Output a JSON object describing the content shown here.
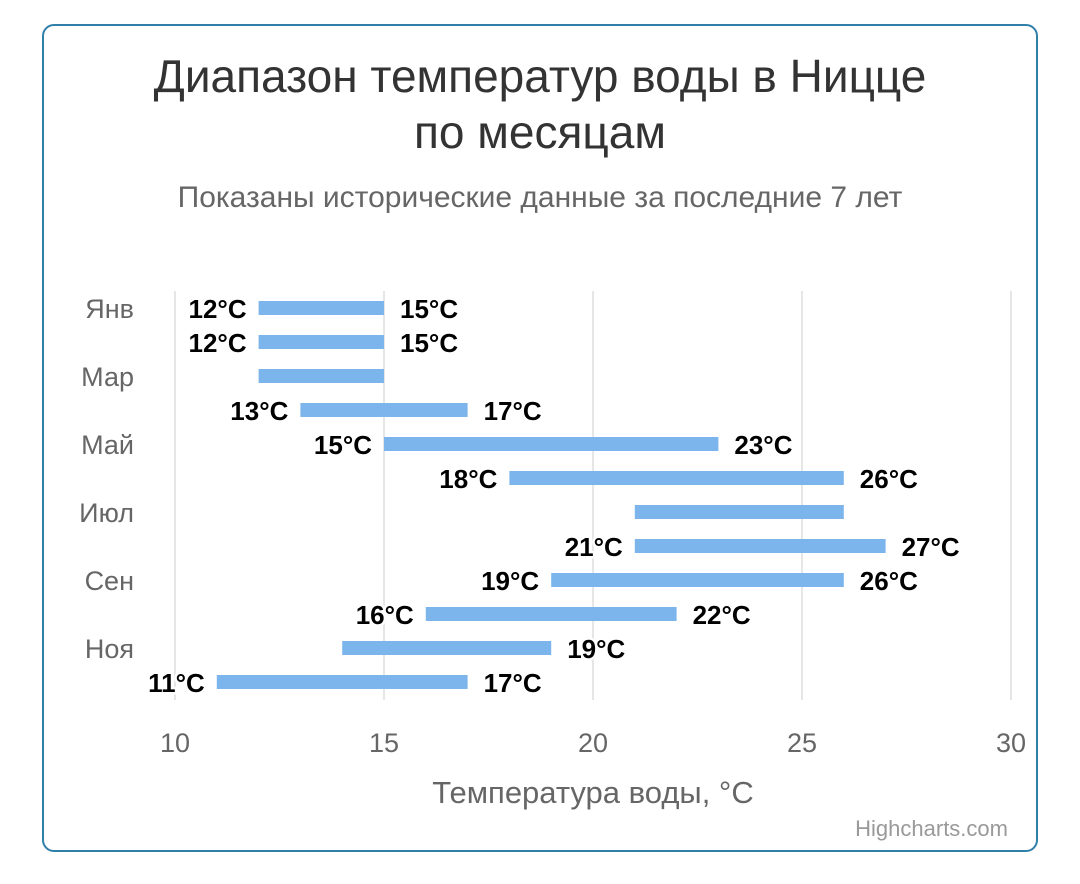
{
  "chart_data": {
    "type": "columnrange",
    "orientation": "horizontal",
    "title": "Диапазон температур воды в Ницце по месяцам",
    "subtitle": "Показаны исторические данные за последние 7 лет",
    "xlabel": "Температура воды, °C",
    "categories": [
      "Янв",
      "",
      "Мар",
      "",
      "Май",
      "",
      "Июл",
      "",
      "Сен",
      "",
      "Ноя",
      ""
    ],
    "xlim": [
      10,
      30
    ],
    "xticks": [
      10,
      15,
      20,
      25,
      30
    ],
    "grid": true,
    "bar_color": "#7cb5ec",
    "series": [
      {
        "low": [
          12,
          12,
          12,
          13,
          15,
          18,
          21,
          21,
          19,
          16,
          14,
          11
        ],
        "high": [
          15,
          15,
          15,
          17,
          23,
          26,
          26,
          27,
          26,
          22,
          19,
          17
        ]
      }
    ],
    "data_labels": [
      {
        "low": "12°C",
        "high": "15°C"
      },
      {
        "low": "12°C",
        "high": "15°C"
      },
      {
        "low": "",
        "high": ""
      },
      {
        "low": "13°C",
        "high": "17°C"
      },
      {
        "low": "15°C",
        "high": "23°C"
      },
      {
        "low": "18°C",
        "high": "26°C"
      },
      {
        "low": "",
        "high": ""
      },
      {
        "low": "21°C",
        "high": "27°C"
      },
      {
        "low": "19°C",
        "high": "26°C"
      },
      {
        "low": "16°C",
        "high": "22°C"
      },
      {
        "low": "",
        "high": "19°C"
      },
      {
        "low": "11°C",
        "high": "17°C"
      }
    ]
  },
  "credits": "Highcharts.com"
}
